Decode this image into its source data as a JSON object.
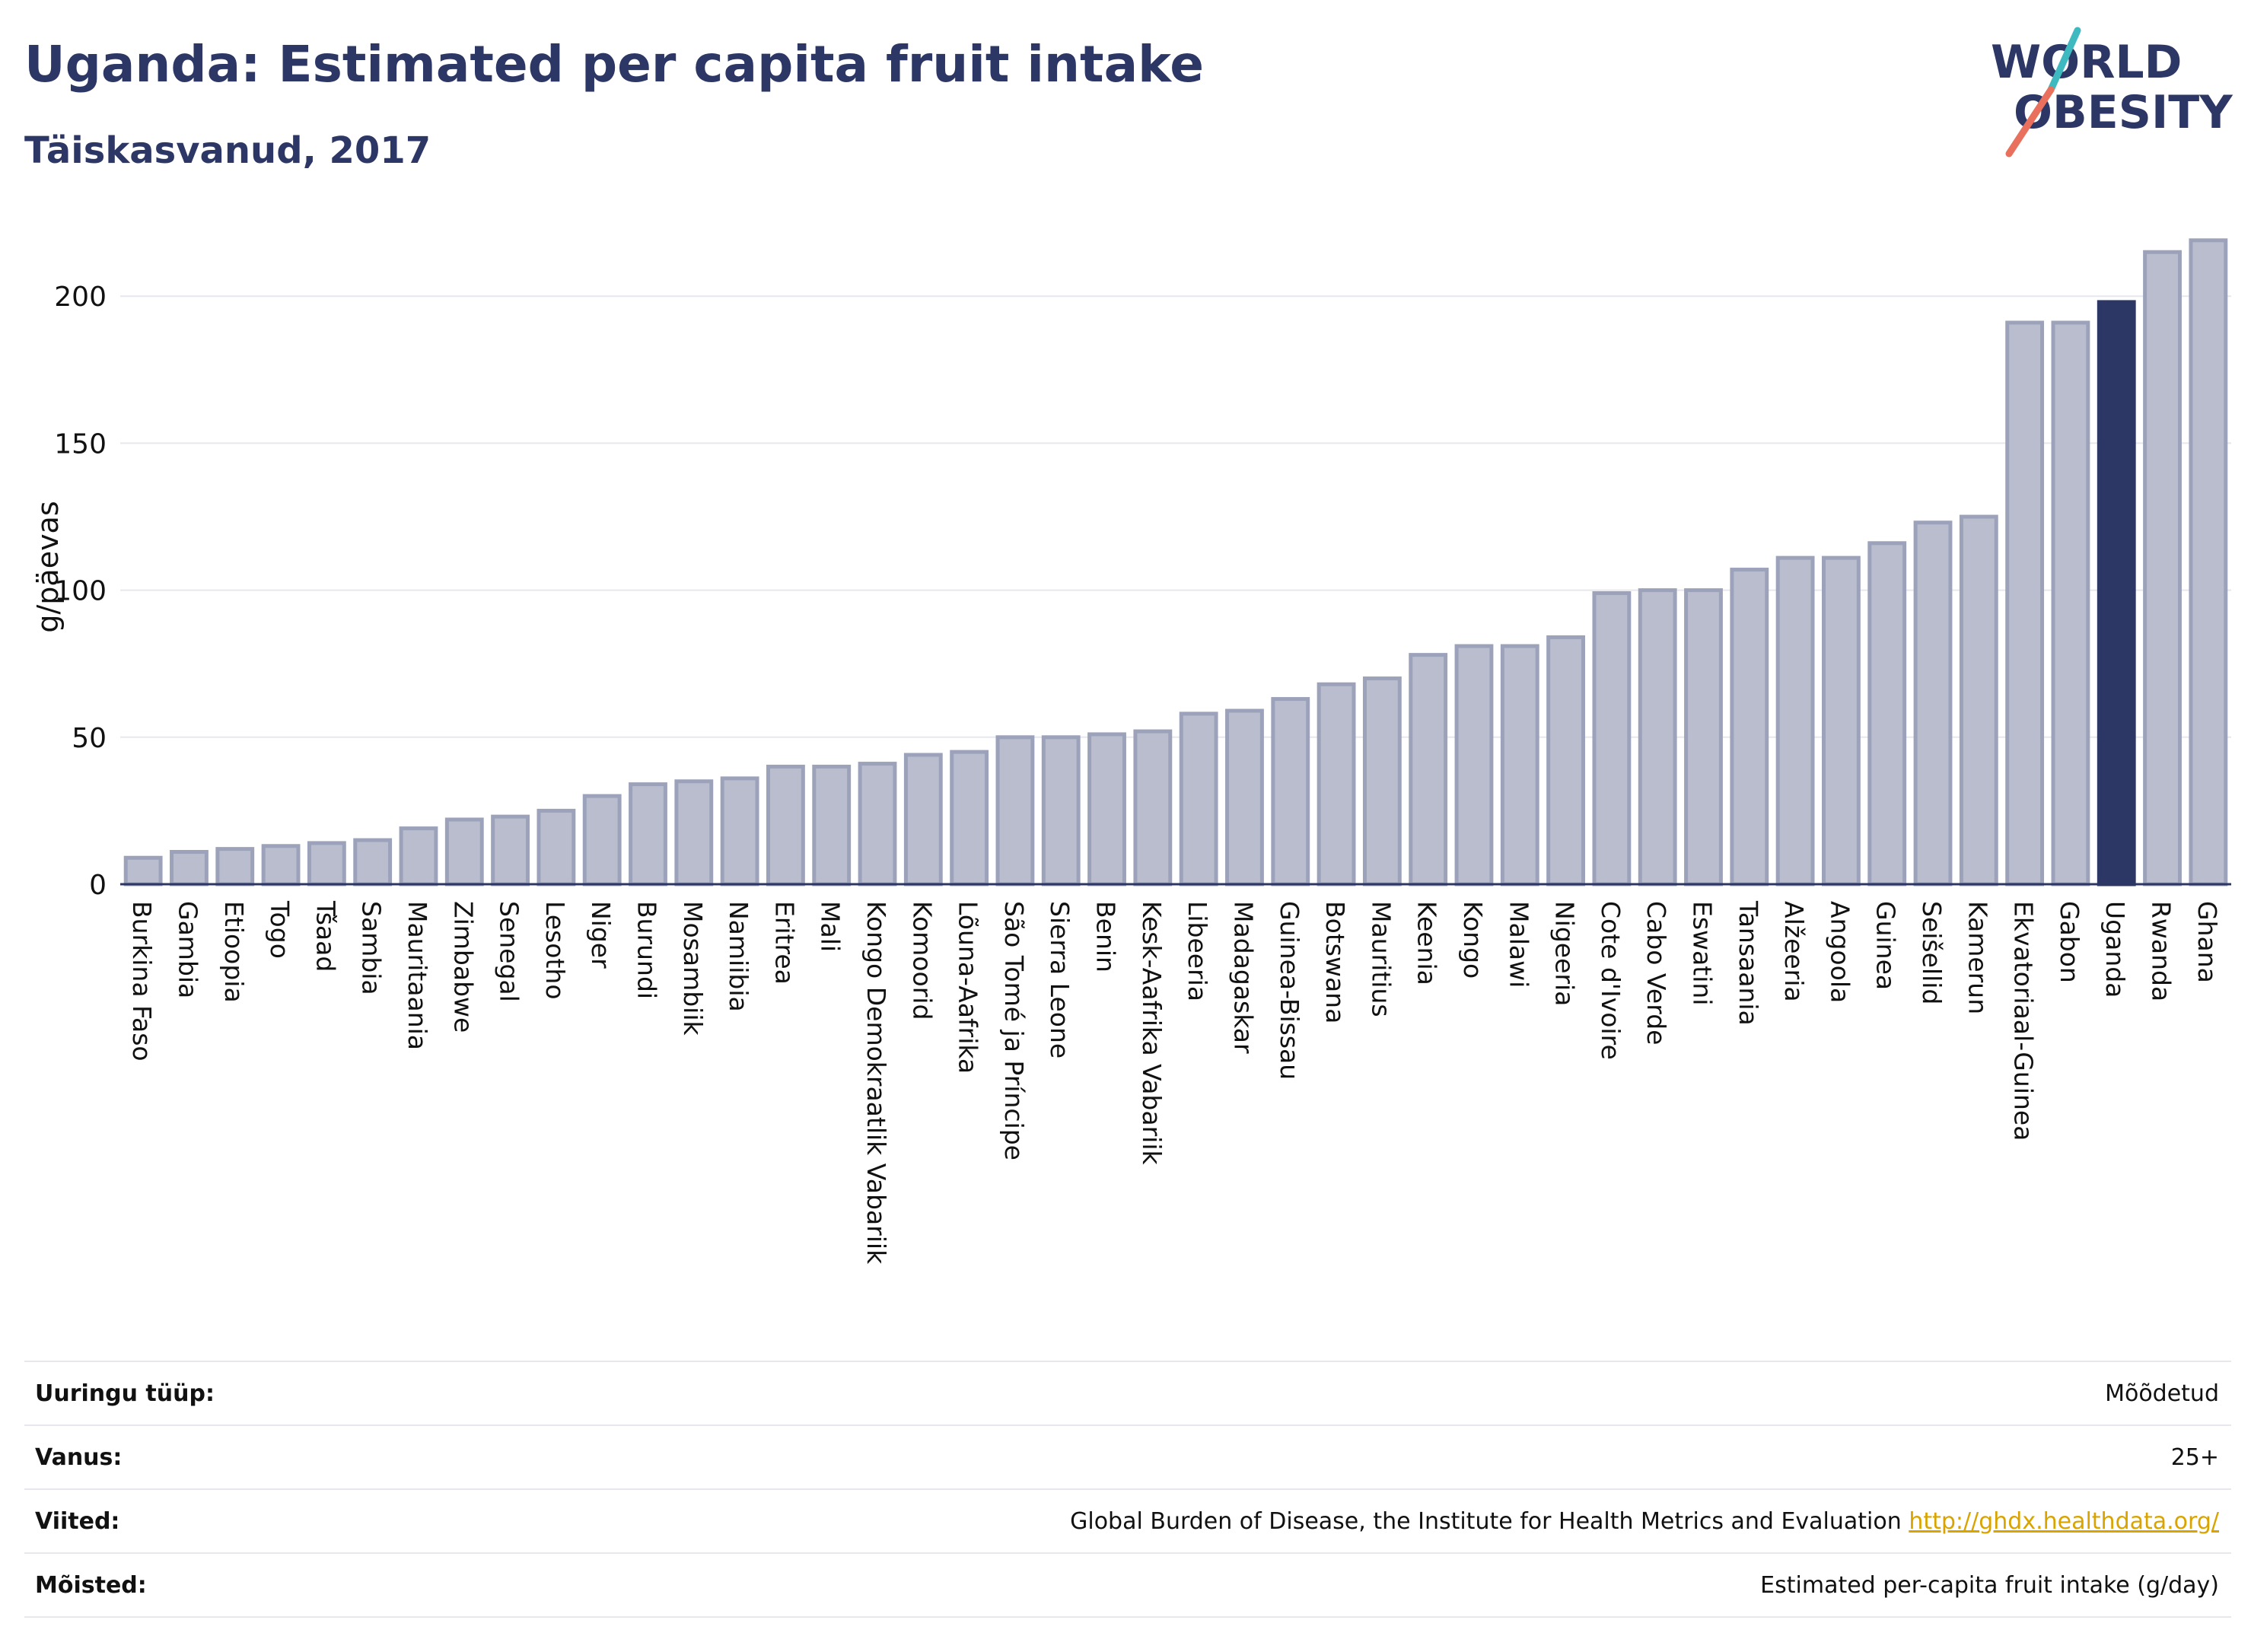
{
  "header": {
    "title": "Uganda: Estimated per capita fruit intake",
    "subtitle": "Täiskasvanud, 2017"
  },
  "logo": {
    "line1": "WORLD",
    "line2": "OBESITY"
  },
  "colors": {
    "bar_default": "#b9bdce",
    "bar_border": "#9ca2ba",
    "bar_highlight": "#2d3765",
    "grid": "#e6e8ee",
    "title": "#2d3765",
    "logo_slash_teal": "#3fb9c0",
    "logo_slash_coral": "#e8705c",
    "link": "#d9a300"
  },
  "chart_data": {
    "type": "bar",
    "title": "Uganda: Estimated per capita fruit intake",
    "subtitle": "Täiskasvanud, 2017",
    "ylabel": "g/päevas",
    "xlabel": "",
    "ylim": [
      0,
      220
    ],
    "yticks": [
      0,
      50,
      100,
      150,
      200
    ],
    "grid": true,
    "highlight": "Uganda",
    "categories": [
      "Burkina Faso",
      "Gambia",
      "Etioopia",
      "Togo",
      "Tšaad",
      "Sambia",
      "Mauritaania",
      "Zimbabwe",
      "Senegal",
      "Lesotho",
      "Niger",
      "Burundi",
      "Mosambiik",
      "Namiibia",
      "Eritrea",
      "Mali",
      "Kongo Demokraatlik Vabariik",
      "Komoorid",
      "Lõuna-Aafrika",
      "São Tomé ja Príncipe",
      "Sierra Leone",
      "Benin",
      "Kesk-Aafrika Vabariik",
      "Libeeria",
      "Madagaskar",
      "Guinea-Bissau",
      "Botswana",
      "Mauritius",
      "Keenia",
      "Kongo",
      "Malawi",
      "Nigeeria",
      "Cote d'Ivoire",
      "Cabo Verde",
      "Eswatini",
      "Tansaania",
      "Alžeeria",
      "Angoola",
      "Guinea",
      "Seišellid",
      "Kamerun",
      "Ekvatoriaal-Guinea",
      "Gabon",
      "Uganda",
      "Rwanda",
      "Ghana"
    ],
    "values": [
      9,
      11,
      12,
      13,
      14,
      15,
      19,
      22,
      23,
      25,
      30,
      34,
      35,
      36,
      40,
      40,
      41,
      44,
      45,
      50,
      50,
      51,
      52,
      58,
      59,
      63,
      68,
      70,
      78,
      81,
      81,
      84,
      99,
      100,
      100,
      107,
      111,
      111,
      116,
      123,
      125,
      191,
      191,
      198,
      215,
      219
    ]
  },
  "info": {
    "rows": [
      {
        "label": "Uuringu tüüp:",
        "value": "Mõõdetud"
      },
      {
        "label": "Vanus:",
        "value": "25+"
      },
      {
        "label": "Viited:",
        "value": "Global Burden of Disease, the Institute for Health Metrics and Evaluation",
        "link": "http://ghdx.healthdata.org/"
      },
      {
        "label": "Mõisted:",
        "value": "Estimated per-capita fruit intake (g/day)"
      }
    ]
  }
}
